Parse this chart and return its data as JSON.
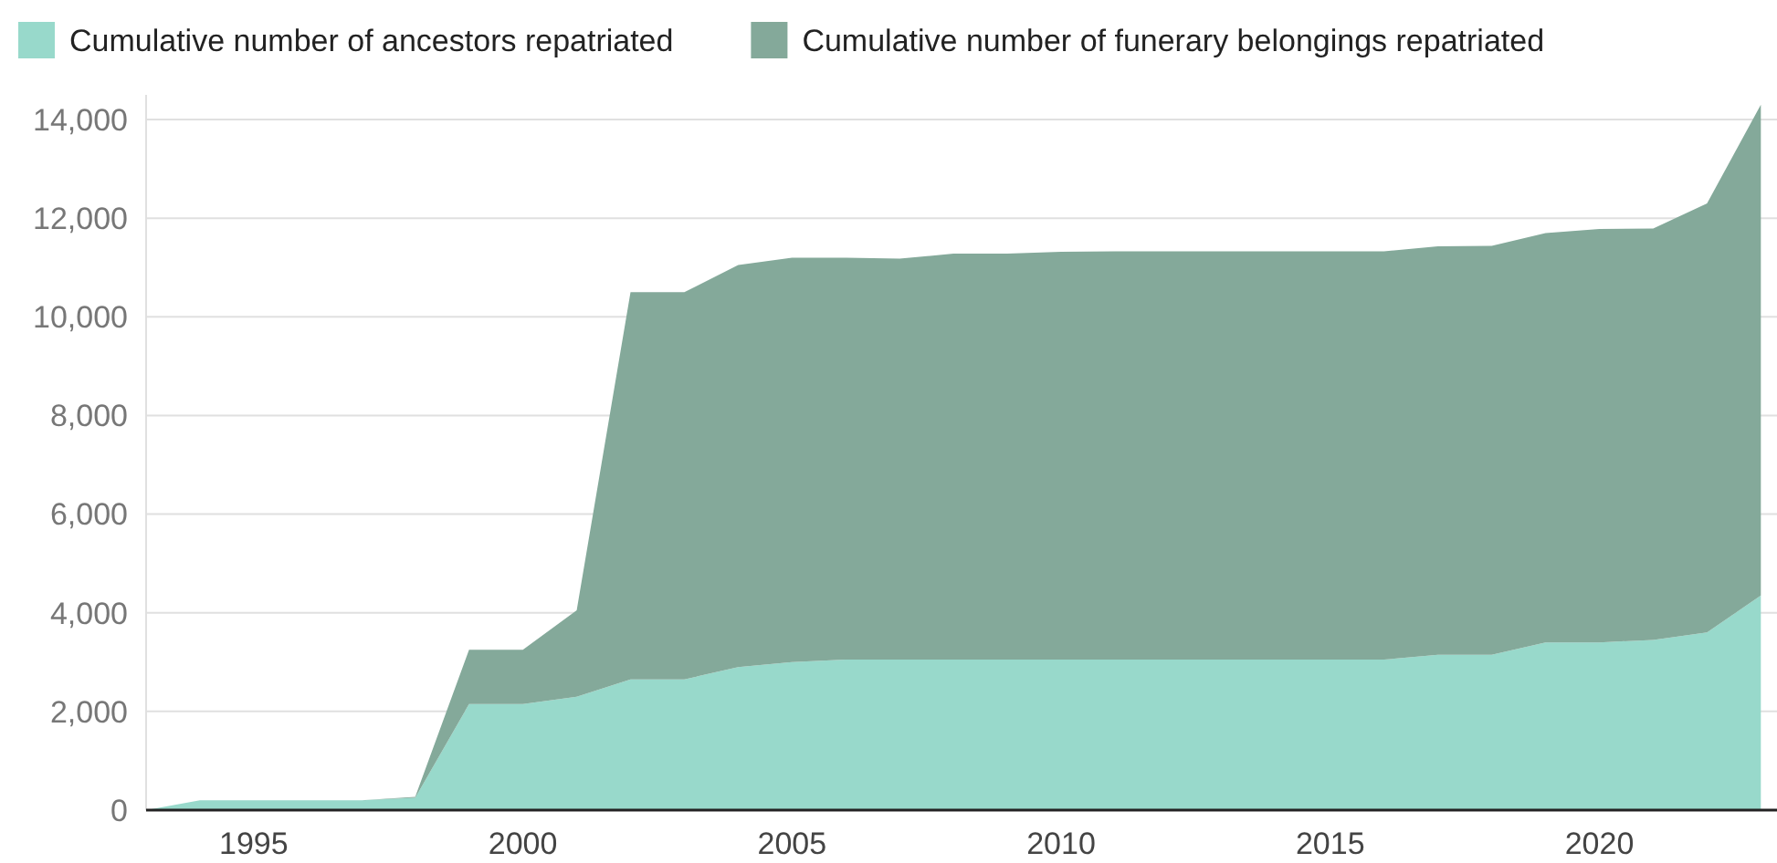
{
  "chart_data": {
    "type": "area",
    "stacked": true,
    "x": [
      1993,
      1994,
      1995,
      1996,
      1997,
      1998,
      1999,
      2000,
      2001,
      2002,
      2003,
      2004,
      2005,
      2006,
      2007,
      2008,
      2009,
      2010,
      2011,
      2012,
      2013,
      2014,
      2015,
      2016,
      2017,
      2018,
      2019,
      2020,
      2021,
      2022,
      2023
    ],
    "series": [
      {
        "name": "Cumulative number of ancestors repatriated",
        "color": "#98d9cb",
        "values": [
          0,
          200,
          200,
          200,
          200,
          250,
          2150,
          2150,
          2300,
          2650,
          2650,
          2900,
          3000,
          3050,
          3050,
          3050,
          3050,
          3050,
          3050,
          3050,
          3050,
          3050,
          3050,
          3050,
          3150,
          3150,
          3400,
          3400,
          3450,
          3600,
          4350
        ]
      },
      {
        "name": "Cumulative number of funerary belongings repatriated",
        "color": "#84a99a",
        "values": [
          0,
          0,
          0,
          0,
          0,
          20,
          1100,
          1100,
          1750,
          7850,
          7850,
          8150,
          8200,
          8150,
          8130,
          8230,
          8230,
          8270,
          8280,
          8280,
          8280,
          8280,
          8280,
          8280,
          8280,
          8290,
          8300,
          8380,
          8340,
          8700,
          9950
        ]
      }
    ],
    "xlim": [
      1993,
      2023.3
    ],
    "xticks": [
      1995,
      2000,
      2005,
      2010,
      2015,
      2020
    ],
    "ylim": [
      0,
      14500
    ],
    "yticks": [
      {
        "value": 0,
        "label": "0"
      },
      {
        "value": 2000,
        "label": "2,000"
      },
      {
        "value": 4000,
        "label": "4,000"
      },
      {
        "value": 6000,
        "label": "6,000"
      },
      {
        "value": 8000,
        "label": "8,000"
      },
      {
        "value": 10000,
        "label": "10,000"
      },
      {
        "value": 12000,
        "label": "12,000"
      },
      {
        "value": 14000,
        "label": "14,000"
      }
    ],
    "grid": "y",
    "legend": "top left"
  }
}
